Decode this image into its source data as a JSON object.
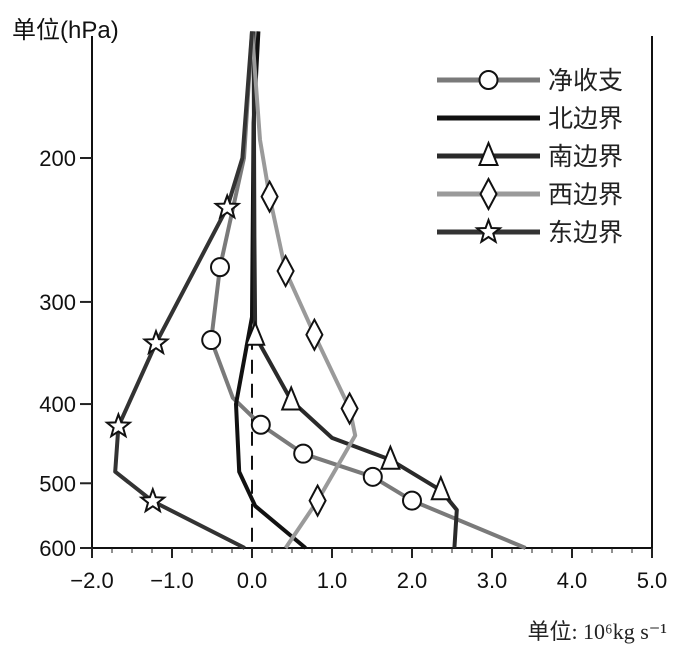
{
  "chart_data": {
    "type": "line",
    "title": "",
    "ylabel": "单位(hPa)",
    "xlabel": "单位: 10⁶kg s⁻¹",
    "xlabel_parts": {
      "prefix": "单位: 10",
      "exp": "6",
      "mid": "kg s",
      "exp2": "-1"
    },
    "xlim": [
      -2.0,
      5.0
    ],
    "ylim": [
      140,
      600
    ],
    "yscale": "log",
    "y_inverted": true,
    "xticks": [
      "-2.0",
      "-1.0",
      "0.0",
      "1.0",
      "2.0",
      "3.0",
      "4.0",
      "5.0"
    ],
    "xtick_values": [
      -2,
      -1,
      0,
      1,
      2,
      3,
      4,
      5
    ],
    "yticks": [
      "200",
      "300",
      "400",
      "500",
      "600"
    ],
    "ytick_values": [
      200,
      300,
      400,
      500,
      600
    ],
    "zero_reference_line": 0,
    "legend_position": "top-right",
    "series": [
      {
        "name": "净收支",
        "marker": "circle",
        "color": "#7a7a7a",
        "line": [
          [
            0,
            140
          ],
          [
            -0.1,
            200
          ],
          [
            -0.4,
            272
          ],
          [
            -0.51,
            334
          ],
          [
            -0.24,
            393
          ],
          [
            0.11,
            424
          ],
          [
            0.64,
            460
          ],
          [
            1.51,
            491
          ],
          [
            2.0,
            525
          ],
          [
            3.42,
            600
          ]
        ],
        "markers": [
          [
            -0.4,
            272
          ],
          [
            -0.51,
            334
          ],
          [
            0.11,
            424
          ],
          [
            0.64,
            460
          ],
          [
            1.51,
            491
          ],
          [
            2.0,
            525
          ]
        ]
      },
      {
        "name": "北边界",
        "marker": "none",
        "color": "#111111",
        "line": [
          [
            0.08,
            140
          ],
          [
            0.02,
            181
          ],
          [
            0.0,
            313
          ],
          [
            -0.2,
            400
          ],
          [
            -0.16,
            484
          ],
          [
            0.04,
            533
          ],
          [
            0.67,
            600
          ]
        ],
        "markers": []
      },
      {
        "name": "南边界",
        "marker": "triangle",
        "color": "#2a2a2a",
        "line": [
          [
            0.02,
            140
          ],
          [
            0.03,
            250
          ],
          [
            0.04,
            330
          ],
          [
            0.49,
            396
          ],
          [
            1.0,
            440
          ],
          [
            1.73,
            468
          ],
          [
            2.36,
            510
          ],
          [
            2.56,
            539
          ],
          [
            2.53,
            600
          ]
        ],
        "markers": [
          [
            0.04,
            330
          ],
          [
            0.49,
            396
          ],
          [
            1.73,
            468
          ],
          [
            2.36,
            510
          ]
        ]
      },
      {
        "name": "西边界",
        "marker": "diamond",
        "color": "#9a9a9a",
        "line": [
          [
            0,
            140
          ],
          [
            0.1,
            190
          ],
          [
            0.22,
            223
          ],
          [
            0.42,
            275
          ],
          [
            0.78,
            329
          ],
          [
            1.22,
            405
          ],
          [
            1.29,
            437
          ],
          [
            0.82,
            525
          ],
          [
            0.42,
            600
          ]
        ],
        "markers": [
          [
            0.22,
            223
          ],
          [
            0.42,
            275
          ],
          [
            0.78,
            329
          ],
          [
            1.22,
            405
          ],
          [
            0.82,
            525
          ]
        ]
      },
      {
        "name": "东边界",
        "marker": "star",
        "color": "#333333",
        "line": [
          [
            0,
            140
          ],
          [
            -0.12,
            200
          ],
          [
            -0.31,
            230
          ],
          [
            -1.2,
            337
          ],
          [
            -1.67,
            426
          ],
          [
            -1.71,
            484
          ],
          [
            -1.24,
            526
          ],
          [
            -0.09,
            600
          ]
        ],
        "markers": [
          [
            -0.31,
            230
          ],
          [
            -1.2,
            337
          ],
          [
            -1.67,
            426
          ],
          [
            -1.24,
            526
          ]
        ]
      }
    ]
  }
}
